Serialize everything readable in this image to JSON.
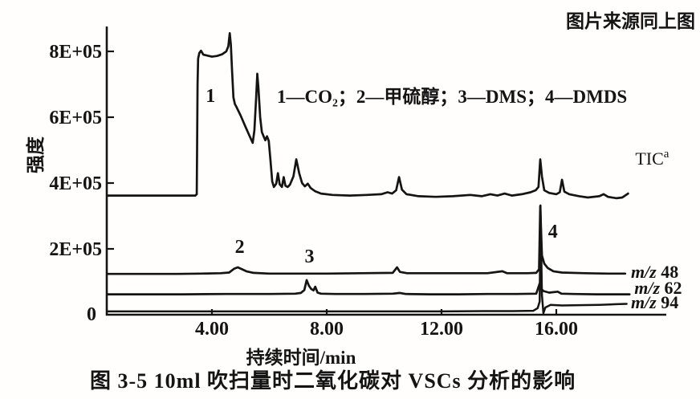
{
  "figure": {
    "source_note": "图片来源同上图",
    "legend": "1—CO₂；2—甲硫醇；3—DMS；4—DMDS",
    "caption": "图 3-5  10ml 吹扫量时二氧化碳对 VSCs 分析的影响"
  },
  "chart_data": {
    "type": "line",
    "title": "",
    "xlabel": "持续时间/min",
    "ylabel": "强度",
    "xlim": [
      0.33,
      19.85
    ],
    "ylim": [
      0,
      880000.0
    ],
    "grid": false,
    "legend_position": "top-center-inside",
    "x_ticks": [
      {
        "t": 4,
        "label": "4.00"
      },
      {
        "t": 8,
        "label": "8.00"
      },
      {
        "t": 12,
        "label": "12.00"
      },
      {
        "t": 16,
        "label": "16.00"
      }
    ],
    "y_ticks": [
      {
        "value": 800000.0,
        "label": "8E+05"
      },
      {
        "value": 600000.0,
        "label": "6E+05"
      },
      {
        "value": 400000.0,
        "label": "4E+05"
      },
      {
        "value": 200000.0,
        "label": "2E+05"
      },
      {
        "value": 0,
        "label": "0"
      }
    ],
    "peak_annotations": [
      {
        "label": "1",
        "t": 3.95,
        "v": 646000.0
      },
      {
        "label": "2",
        "t": 4.97,
        "v": 188000.0
      },
      {
        "label": "3",
        "t": 7.4,
        "v": 159000.0
      },
      {
        "label": "4",
        "t": 15.88,
        "v": 234000.0
      }
    ],
    "series": [
      {
        "name": "TIC",
        "label": {
          "text": "TIC",
          "sup": "a"
        },
        "label_at": {
          "t": 18.75,
          "v": 456000.0
        },
        "stroke_width": 2.7,
        "points": [
          [
            0.35,
            362000.0
          ],
          [
            1.2,
            362000.0
          ],
          [
            2.4,
            362000.0
          ],
          [
            3.1,
            362000.0
          ],
          [
            3.42,
            362000.0
          ],
          [
            3.47,
            366000.0
          ],
          [
            3.5,
            700000.0
          ],
          [
            3.52,
            778000.0
          ],
          [
            3.56,
            795000.0
          ],
          [
            3.62,
            802000.0
          ],
          [
            3.7,
            790000.0
          ],
          [
            3.85,
            787000.0
          ],
          [
            4.0,
            784000.0
          ],
          [
            4.18,
            786000.0
          ],
          [
            4.35,
            791000.0
          ],
          [
            4.5,
            800000.0
          ],
          [
            4.57,
            815000.0
          ],
          [
            4.62,
            855000.0
          ],
          [
            4.66,
            820000.0
          ],
          [
            4.7,
            745000.0
          ],
          [
            4.75,
            660000.0
          ],
          [
            4.8,
            640000.0
          ],
          [
            4.85,
            632000.0
          ],
          [
            5.0,
            605000.0
          ],
          [
            5.15,
            575000.0
          ],
          [
            5.3,
            545000.0
          ],
          [
            5.42,
            522000.0
          ],
          [
            5.48,
            560000.0
          ],
          [
            5.54,
            660000.0
          ],
          [
            5.58,
            732000.0
          ],
          [
            5.62,
            690000.0
          ],
          [
            5.68,
            600000.0
          ],
          [
            5.74,
            555000.0
          ],
          [
            5.8,
            542000.0
          ],
          [
            5.86,
            530000.0
          ],
          [
            5.92,
            542000.0
          ],
          [
            5.98,
            528000.0
          ],
          [
            6.04,
            470000.0
          ],
          [
            6.1,
            405000.0
          ],
          [
            6.16,
            388000.0
          ],
          [
            6.24,
            398000.0
          ],
          [
            6.3,
            430000.0
          ],
          [
            6.36,
            396000.0
          ],
          [
            6.44,
            388000.0
          ],
          [
            6.5,
            418000.0
          ],
          [
            6.56,
            392000.0
          ],
          [
            6.64,
            388000.0
          ],
          [
            6.72,
            395000.0
          ],
          [
            6.84,
            420000.0
          ],
          [
            6.94,
            472000.0
          ],
          [
            7.04,
            430000.0
          ],
          [
            7.14,
            400000.0
          ],
          [
            7.24,
            390000.0
          ],
          [
            7.34,
            398000.0
          ],
          [
            7.44,
            385000.0
          ],
          [
            7.6,
            375000.0
          ],
          [
            7.8,
            368000.0
          ],
          [
            8.2,
            364000.0
          ],
          [
            8.8,
            362000.0
          ],
          [
            9.4,
            364000.0
          ],
          [
            9.9,
            366000.0
          ],
          [
            10.12,
            372000.0
          ],
          [
            10.28,
            368000.0
          ],
          [
            10.42,
            378000.0
          ],
          [
            10.52,
            418000.0
          ],
          [
            10.62,
            380000.0
          ],
          [
            10.78,
            366000.0
          ],
          [
            11.2,
            360000.0
          ],
          [
            11.8,
            358000.0
          ],
          [
            12.4,
            360000.0
          ],
          [
            13.0,
            364000.0
          ],
          [
            13.4,
            360000.0
          ],
          [
            13.7,
            366000.0
          ],
          [
            13.95,
            362000.0
          ],
          [
            14.2,
            368000.0
          ],
          [
            14.45,
            362000.0
          ],
          [
            14.8,
            366000.0
          ],
          [
            15.1,
            372000.0
          ],
          [
            15.28,
            378000.0
          ],
          [
            15.38,
            388000.0
          ],
          [
            15.44,
            472000.0
          ],
          [
            15.5,
            420000.0
          ],
          [
            15.58,
            378000.0
          ],
          [
            15.75,
            370000.0
          ],
          [
            16.0,
            366000.0
          ],
          [
            16.12,
            372000.0
          ],
          [
            16.2,
            410000.0
          ],
          [
            16.28,
            374000.0
          ],
          [
            16.45,
            366000.0
          ],
          [
            16.8,
            360000.0
          ],
          [
            17.1,
            356000.0
          ],
          [
            17.5,
            360000.0
          ],
          [
            17.65,
            366000.0
          ],
          [
            17.8,
            358000.0
          ],
          [
            18.1,
            354000.0
          ],
          [
            18.3,
            356000.0
          ],
          [
            18.5,
            368000.0
          ]
        ]
      },
      {
        "name": "m/z 48",
        "label": {
          "prefix": "m/z",
          "value": "48"
        },
        "label_at": {
          "t": 18.6,
          "v": 112000.0
        },
        "stroke_width": 2.7,
        "points": [
          [
            0.35,
            124000.0
          ],
          [
            1.5,
            124000.0
          ],
          [
            2.8,
            124000.0
          ],
          [
            3.6,
            125000.0
          ],
          [
            4.3,
            126000.0
          ],
          [
            4.6,
            128000.0
          ],
          [
            4.78,
            140000.0
          ],
          [
            4.9,
            144000.0
          ],
          [
            5.05,
            138000.0
          ],
          [
            5.2,
            132000.0
          ],
          [
            5.45,
            127000.0
          ],
          [
            6.0,
            125000.0
          ],
          [
            7.0,
            125000.0
          ],
          [
            8.0,
            125000.0
          ],
          [
            9.2,
            126000.0
          ],
          [
            10.3,
            127000.0
          ],
          [
            10.45,
            144000.0
          ],
          [
            10.55,
            130000.0
          ],
          [
            10.8,
            126000.0
          ],
          [
            11.6,
            126000.0
          ],
          [
            12.6,
            126000.0
          ],
          [
            13.6,
            126000.0
          ],
          [
            14.12,
            132000.0
          ],
          [
            14.28,
            126000.0
          ],
          [
            15.0,
            126000.0
          ],
          [
            15.3,
            127000.0
          ],
          [
            15.4,
            138000.0
          ],
          [
            15.44,
            330000.0
          ],
          [
            15.5,
            180000.0
          ],
          [
            15.58,
            155000.0
          ],
          [
            15.7,
            142000.0
          ],
          [
            15.9,
            132000.0
          ],
          [
            16.2,
            128000.0
          ],
          [
            17.0,
            126000.0
          ],
          [
            17.8,
            125000.0
          ],
          [
            18.4,
            125000.0
          ]
        ]
      },
      {
        "name": "m/z 62",
        "label": {
          "prefix": "m/z",
          "value": "62"
        },
        "label_at": {
          "t": 18.72,
          "v": 63000.0
        },
        "stroke_width": 2.7,
        "points": [
          [
            0.35,
            62000.0
          ],
          [
            1.5,
            62000.0
          ],
          [
            3.0,
            62000.0
          ],
          [
            4.5,
            63000.0
          ],
          [
            6.0,
            63000.0
          ],
          [
            6.9,
            64000.0
          ],
          [
            7.1,
            66000.0
          ],
          [
            7.22,
            75000.0
          ],
          [
            7.3,
            105000.0
          ],
          [
            7.38,
            88000.0
          ],
          [
            7.46,
            78000.0
          ],
          [
            7.54,
            74000.0
          ],
          [
            7.6,
            85000.0
          ],
          [
            7.68,
            67000.0
          ],
          [
            7.8,
            64000.0
          ],
          [
            8.3,
            63000.0
          ],
          [
            9.3,
            63000.0
          ],
          [
            10.3,
            64000.0
          ],
          [
            10.55,
            66000.0
          ],
          [
            10.75,
            63000.0
          ],
          [
            11.6,
            62000.0
          ],
          [
            12.6,
            62000.0
          ],
          [
            13.6,
            63000.0
          ],
          [
            14.6,
            63000.0
          ],
          [
            15.3,
            64000.0
          ],
          [
            15.42,
            95000.0
          ],
          [
            15.46,
            80000.0
          ],
          [
            15.55,
            72000.0
          ],
          [
            15.75,
            67000.0
          ],
          [
            16.05,
            70000.0
          ],
          [
            16.18,
            64000.0
          ],
          [
            16.6,
            63000.0
          ],
          [
            17.4,
            62000.0
          ],
          [
            18.0,
            62000.0
          ],
          [
            18.55,
            62000.0
          ]
        ]
      },
      {
        "name": "m/z 94",
        "label": {
          "prefix": "m/z",
          "value": "94"
        },
        "label_at": {
          "t": 18.6,
          "v": 20000.0
        },
        "stroke_width": 2.5,
        "points": [
          [
            0.35,
            10000.0
          ],
          [
            1.5,
            10000.0
          ],
          [
            3.0,
            10000.0
          ],
          [
            4.5,
            10000.0
          ],
          [
            6.0,
            10000.0
          ],
          [
            7.5,
            10000.0
          ],
          [
            9.0,
            10000.0
          ],
          [
            10.5,
            10000.0
          ],
          [
            12.0,
            10000.0
          ],
          [
            13.5,
            11000.0
          ],
          [
            14.5,
            11000.0
          ],
          [
            15.2,
            12000.0
          ],
          [
            15.35,
            20000.0
          ],
          [
            15.42,
            40000.0
          ],
          [
            15.45,
            332000.0
          ],
          [
            15.5,
            60000.0
          ],
          [
            15.55,
            5000.0
          ],
          [
            15.62,
            22000.0
          ],
          [
            15.8,
            30000.0
          ],
          [
            16.2,
            28000.0
          ],
          [
            16.8,
            29000.0
          ],
          [
            17.5,
            30000.0
          ],
          [
            18.1,
            32000.0
          ],
          [
            18.45,
            33000.0
          ]
        ]
      }
    ]
  }
}
